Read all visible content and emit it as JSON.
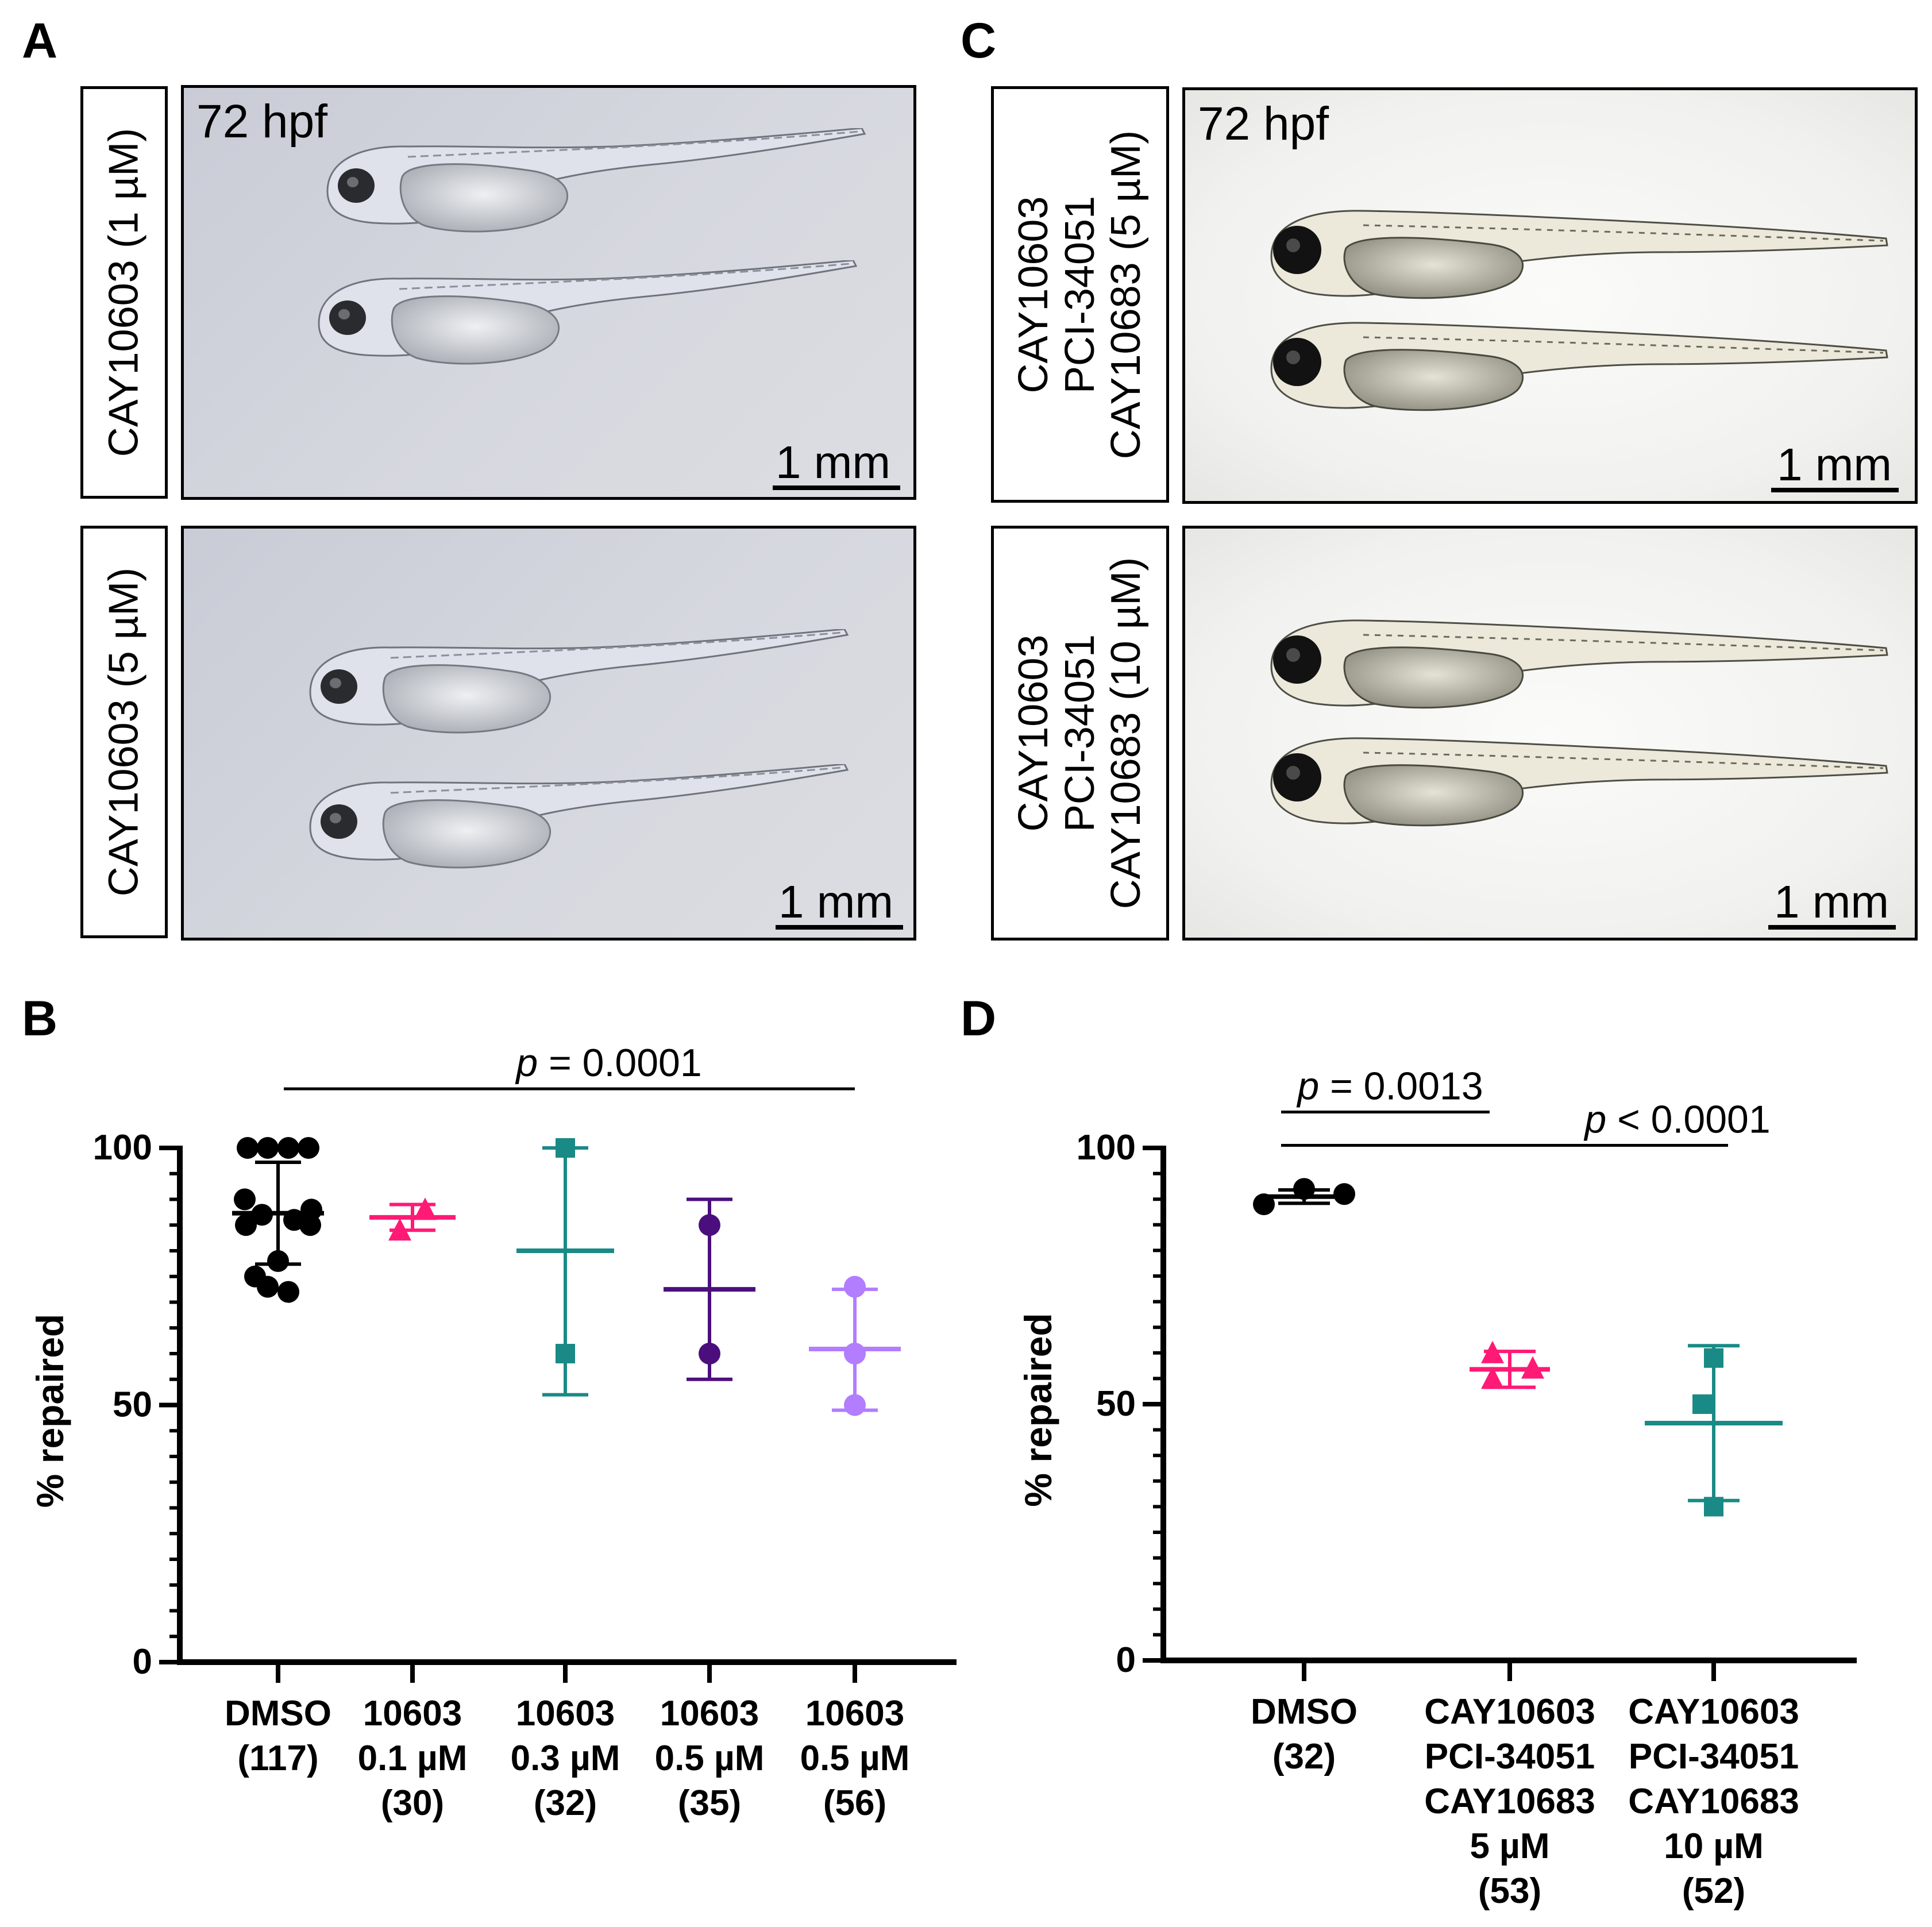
{
  "panels": {
    "A": {
      "label": "A",
      "stage": "72 hpf",
      "rows": [
        {
          "condition": "CAY10603 (1 µM)",
          "scale": "1 mm"
        },
        {
          "condition": "CAY10603 (5  µM)",
          "scale": "1 mm"
        }
      ]
    },
    "C": {
      "label": "C",
      "stage": "72 hpf",
      "rows": [
        {
          "lines": [
            "CAY10603",
            "PCI-34051",
            "CAY10683 (5 µM)"
          ],
          "scale": "1 mm"
        },
        {
          "lines": [
            "CAY10603",
            "PCI-34051",
            "CAY10683 (10 µM)"
          ],
          "scale": "1 mm"
        }
      ]
    },
    "B": {
      "label": "B"
    },
    "D": {
      "label": "D"
    }
  },
  "colors": {
    "black": "#000000",
    "pink": "#ff1a75",
    "teal": "#1a8a86",
    "purple": "#4b0f7d",
    "lilac": "#b27dff",
    "fish_blue_body": "#dfe2ea",
    "fish_white_body": "#e8e6da"
  },
  "chart_data": [
    {
      "panel": "B",
      "type": "scatter",
      "title": "",
      "xlabel": "",
      "ylabel": "% repaired",
      "ylim": [
        0,
        100
      ],
      "yticks": [
        0,
        50,
        100
      ],
      "categories": [
        [
          "DMSO",
          "(117)"
        ],
        [
          "10603",
          "0.1 µM",
          "(30)"
        ],
        [
          "10603",
          "0.3 µM",
          "(32)"
        ],
        [
          "10603",
          "0.5 µM",
          "(35)"
        ],
        [
          "10603",
          "0.5 µM",
          "(56)"
        ]
      ],
      "series": [
        {
          "name": "DMSO",
          "marker": "circle",
          "color": "#000000",
          "values": [
            100,
            100,
            100,
            100,
            90,
            88,
            87,
            86,
            85,
            85,
            78,
            75,
            73,
            72
          ],
          "mean": 87.3,
          "sd_upper": 97.2,
          "sd_lower": 77.4
        },
        {
          "name": "10603 0.1 µM",
          "marker": "triangle",
          "color": "#ff1a75",
          "values": [
            88,
            84
          ],
          "mean": 86.5,
          "sd_upper": 89,
          "sd_lower": 84
        },
        {
          "name": "10603 0.3 µM",
          "marker": "square",
          "color": "#1a8a86",
          "values": [
            100,
            60
          ],
          "mean": 80,
          "sd_upper": 100,
          "sd_lower": 52
        },
        {
          "name": "10603 0.5 µM (35)",
          "marker": "circle",
          "color": "#4b0f7d",
          "values": [
            85,
            60
          ],
          "mean": 72.5,
          "sd_upper": 90,
          "sd_lower": 55
        },
        {
          "name": "10603 0.5 µM (56)",
          "marker": "circle",
          "color": "#b27dff",
          "values": [
            73,
            60,
            50
          ],
          "mean": 60.9,
          "sd_upper": 72.5,
          "sd_lower": 49
        }
      ],
      "annotations": [
        {
          "text_italic": "p",
          "text": " = 0.0001",
          "from": 0,
          "to": 4,
          "y": 111.5
        }
      ]
    },
    {
      "panel": "D",
      "type": "scatter",
      "title": "",
      "xlabel": "",
      "ylabel": "% repaired",
      "ylim": [
        0,
        100
      ],
      "yticks": [
        0,
        50,
        100
      ],
      "categories": [
        [
          "DMSO",
          "(32)"
        ],
        [
          "CAY10603",
          "PCI-34051",
          "CAY10683",
          "5 µM",
          "(53)"
        ],
        [
          "CAY10603",
          "PCI-34051",
          "CAY10683",
          "10 µM",
          "(52)"
        ]
      ],
      "series": [
        {
          "name": "DMSO",
          "marker": "circle",
          "color": "#000000",
          "values": [
            89,
            92,
            91
          ],
          "mean": 90.5,
          "sd_upper": 91.8,
          "sd_lower": 89.2
        },
        {
          "name": "CAY10603 PCI-34051 CAY10683 5 µM",
          "marker": "triangle",
          "color": "#ff1a75",
          "values": [
            60,
            57,
            55
          ],
          "mean": 56.8,
          "sd_upper": 60.3,
          "sd_lower": 53.3
        },
        {
          "name": "CAY10603 PCI-34051 CAY10683 10 µM",
          "marker": "square",
          "color": "#1a8a86",
          "values": [
            59,
            50,
            30
          ],
          "mean": 46.3,
          "sd_upper": 61.4,
          "sd_lower": 31.2
        }
      ],
      "annotations": [
        {
          "text_italic": "p",
          "text": " = 0.0013",
          "from": 0,
          "to": 1,
          "y": 107
        },
        {
          "text_italic": "p",
          "text": " < 0.0001",
          "from": 0,
          "to": 2,
          "y": 100.5
        }
      ]
    }
  ]
}
